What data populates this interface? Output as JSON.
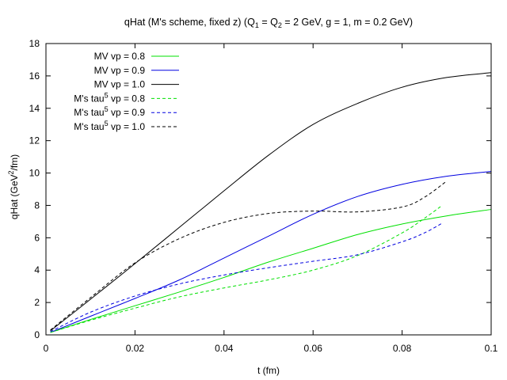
{
  "chart_data": {
    "type": "line",
    "title": {
      "prefix": "qHat (M's scheme, fixed z) (Q",
      "sub1": "1",
      "mid": " = Q",
      "sub2": "2",
      "suffix": " = 2 GeV, g = 1, m = 0.2 GeV)"
    },
    "xlabel": "t (fm)",
    "ylabel": {
      "prefix": "qHat (GeV",
      "sup": "2",
      "suffix": "/fm)"
    },
    "xlim": [
      0,
      0.1
    ],
    "ylim": [
      0,
      18
    ],
    "xticks": [
      0,
      0.02,
      0.04,
      0.06,
      0.08,
      0.1
    ],
    "xtick_labels": [
      "0",
      "0.02",
      "0.04",
      "0.06",
      "0.08",
      "0.1"
    ],
    "yticks": [
      0,
      2,
      4,
      6,
      8,
      10,
      12,
      14,
      16,
      18
    ],
    "ytick_labels": [
      "0",
      "2",
      "4",
      "6",
      "8",
      "10",
      "12",
      "14",
      "16",
      "18"
    ],
    "grid": false,
    "legend_position": "top-left",
    "series": [
      {
        "name": "MV vp = 0.8",
        "label": {
          "prefix": "MV vp = 0.8",
          "sup": "",
          "suffix": ""
        },
        "color": "#00e000",
        "dashed": false,
        "x": [
          0.001,
          0.01,
          0.02,
          0.03,
          0.04,
          0.05,
          0.06,
          0.07,
          0.08,
          0.09,
          0.1
        ],
        "y": [
          0.15,
          0.95,
          1.8,
          2.65,
          3.55,
          4.5,
          5.35,
          6.2,
          6.85,
          7.35,
          7.75
        ]
      },
      {
        "name": "MV vp = 0.9",
        "label": {
          "prefix": "MV vp = 0.9",
          "sup": "",
          "suffix": ""
        },
        "color": "#0000e0",
        "dashed": false,
        "x": [
          0.001,
          0.01,
          0.02,
          0.03,
          0.04,
          0.05,
          0.06,
          0.07,
          0.08,
          0.09,
          0.1
        ],
        "y": [
          0.15,
          1.15,
          2.25,
          3.4,
          4.75,
          6.1,
          7.45,
          8.55,
          9.3,
          9.8,
          10.1
        ]
      },
      {
        "name": "MV vp = 1.0",
        "label": {
          "prefix": "MV vp = 1.0",
          "sup": "",
          "suffix": ""
        },
        "color": "#000000",
        "dashed": false,
        "x": [
          0.001,
          0.01,
          0.02,
          0.03,
          0.04,
          0.05,
          0.06,
          0.07,
          0.08,
          0.09,
          0.1
        ],
        "y": [
          0.25,
          2.2,
          4.4,
          6.65,
          8.9,
          11.1,
          13.0,
          14.3,
          15.3,
          15.9,
          16.2
        ]
      },
      {
        "name": "M's tau5 vp = 0.8",
        "label": {
          "prefix": "M's tau",
          "sup": "5",
          "suffix": " vp = 0.8"
        },
        "color": "#00e000",
        "dashed": true,
        "x": [
          0.001,
          0.01,
          0.02,
          0.03,
          0.04,
          0.05,
          0.06,
          0.07,
          0.08,
          0.085,
          0.089
        ],
        "y": [
          0.15,
          0.9,
          1.65,
          2.35,
          2.9,
          3.4,
          4.0,
          4.9,
          6.3,
          7.2,
          8.0
        ]
      },
      {
        "name": "M's tau5 vp = 0.9",
        "label": {
          "prefix": "M's tau",
          "sup": "5",
          "suffix": " vp = 0.9"
        },
        "color": "#0000e0",
        "dashed": true,
        "x": [
          0.001,
          0.01,
          0.02,
          0.03,
          0.04,
          0.05,
          0.06,
          0.07,
          0.08,
          0.085,
          0.089
        ],
        "y": [
          0.2,
          1.4,
          2.4,
          3.15,
          3.7,
          4.15,
          4.55,
          4.95,
          5.75,
          6.3,
          6.9
        ]
      },
      {
        "name": "M's tau5 vp = 1.0",
        "label": {
          "prefix": "M's tau",
          "sup": "5",
          "suffix": " vp = 1.0"
        },
        "color": "#000000",
        "dashed": true,
        "x": [
          0.001,
          0.01,
          0.02,
          0.03,
          0.04,
          0.05,
          0.06,
          0.07,
          0.08,
          0.085,
          0.09
        ],
        "y": [
          0.3,
          2.3,
          4.45,
          5.95,
          6.95,
          7.5,
          7.65,
          7.6,
          7.9,
          8.5,
          9.5
        ]
      }
    ]
  }
}
